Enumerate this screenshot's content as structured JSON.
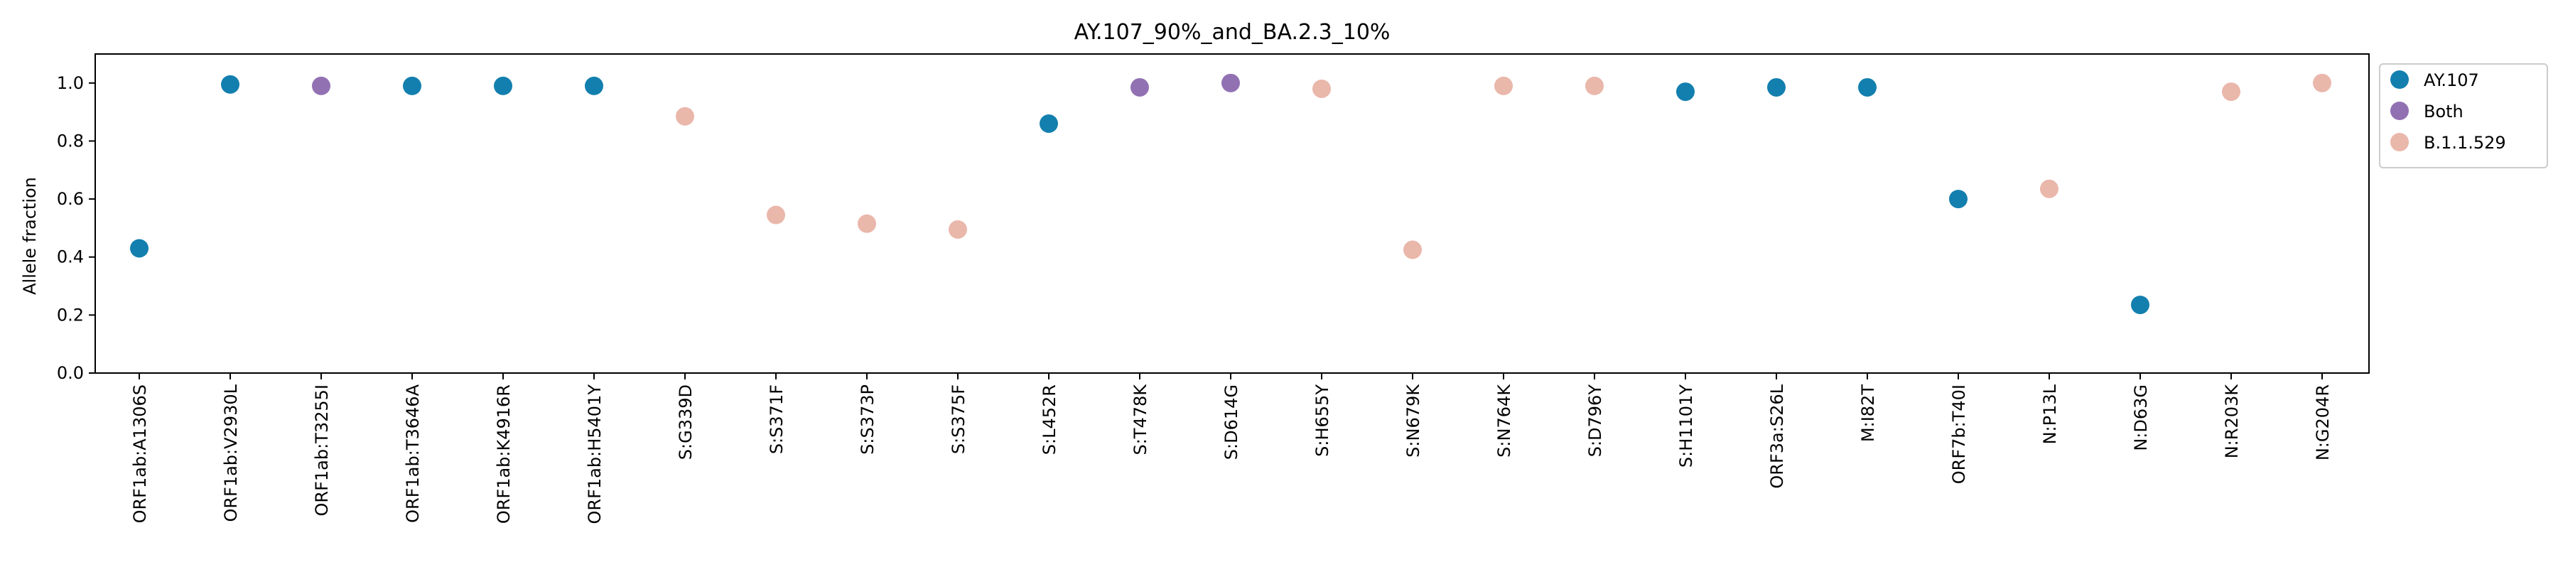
{
  "chart_data": {
    "type": "scatter",
    "title": "AY.107_90%_and_BA.2.3_10%",
    "xlabel": "",
    "ylabel": "Allele fraction",
    "ylim": [
      0,
      1.1
    ],
    "yticks": [
      "0.0",
      "0.2",
      "0.4",
      "0.6",
      "0.8",
      "1.0"
    ],
    "grid": false,
    "legend_position": "outside-top-right",
    "categories": [
      "ORF1ab:A1306S",
      "ORF1ab:V2930L",
      "ORF1ab:T3255I",
      "ORF1ab:T3646A",
      "ORF1ab:K4916R",
      "ORF1ab:H5401Y",
      "S:G339D",
      "S:S371F",
      "S:S373P",
      "S:S375F",
      "S:L452R",
      "S:T478K",
      "S:D614G",
      "S:H655Y",
      "S:N679K",
      "S:N764K",
      "S:D796Y",
      "S:H1101Y",
      "ORF3a:S26L",
      "M:I82T",
      "ORF7b:T40I",
      "N:P13L",
      "N:D63G",
      "N:R203K",
      "N:G204R"
    ],
    "values": [
      0.43,
      0.995,
      0.99,
      0.99,
      0.99,
      0.99,
      0.885,
      0.545,
      0.515,
      0.495,
      0.86,
      0.985,
      1.0,
      0.98,
      0.425,
      0.99,
      0.99,
      0.97,
      0.985,
      0.985,
      0.6,
      0.635,
      0.235,
      0.97,
      1.0
    ],
    "groups": [
      "AY.107",
      "AY.107",
      "Both",
      "AY.107",
      "AY.107",
      "AY.107",
      "B.1.1.529",
      "B.1.1.529",
      "B.1.1.529",
      "B.1.1.529",
      "AY.107",
      "Both",
      "Both",
      "B.1.1.529",
      "B.1.1.529",
      "B.1.1.529",
      "B.1.1.529",
      "AY.107",
      "AY.107",
      "AY.107",
      "AY.107",
      "B.1.1.529",
      "AY.107",
      "B.1.1.529",
      "B.1.1.529"
    ],
    "legend": [
      {
        "name": "AY.107",
        "color": "#137fae"
      },
      {
        "name": "Both",
        "color": "#9271b3"
      },
      {
        "name": "B.1.1.529",
        "color": "#eab7ab"
      }
    ]
  }
}
